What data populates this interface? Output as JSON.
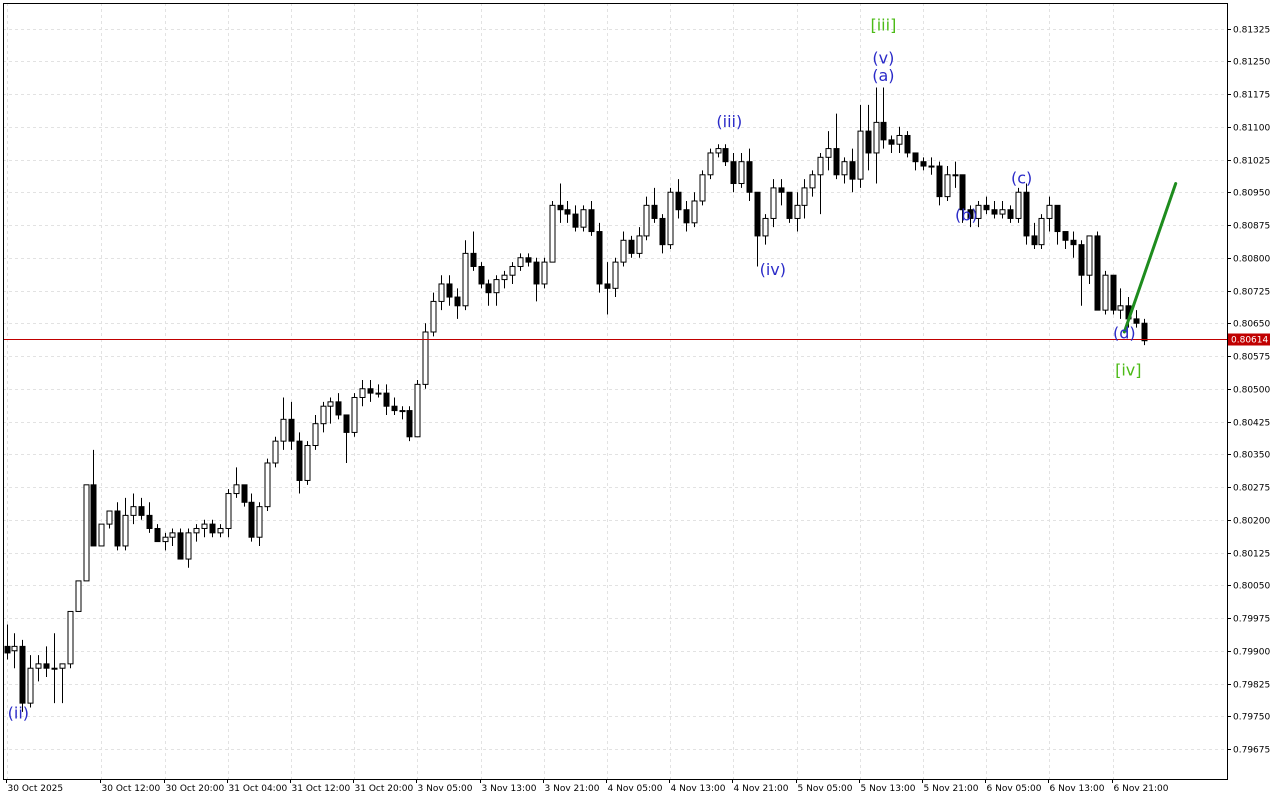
{
  "chart_data": {
    "type": "candlestick",
    "title": "",
    "xlabel": "",
    "ylabel": "",
    "ylim": [
      0.79618,
      0.8139
    ],
    "grid": true,
    "y_ticks": [
      "0.81325",
      "0.81250",
      "0.81175",
      "0.81100",
      "0.81025",
      "0.80950",
      "0.80875",
      "0.80800",
      "0.80725",
      "0.80650",
      "0.80575",
      "0.80500",
      "0.80425",
      "0.80350",
      "0.80275",
      "0.80200",
      "0.80125",
      "0.80050",
      "0.79975",
      "0.79900",
      "0.79825",
      "0.79750",
      "0.79675"
    ],
    "x_ticks": [
      {
        "label": "30 Oct 2025",
        "bar": 0
      },
      {
        "label": "30 Oct 12:00",
        "bar": 12
      },
      {
        "label": "30 Oct 20:00",
        "bar": 20
      },
      {
        "label": "31 Oct 04:00",
        "bar": 28
      },
      {
        "label": "31 Oct 12:00",
        "bar": 36
      },
      {
        "label": "31 Oct 20:00",
        "bar": 44
      },
      {
        "label": "3 Nov 05:00",
        "bar": 52
      },
      {
        "label": "3 Nov 13:00",
        "bar": 60
      },
      {
        "label": "3 Nov 21:00",
        "bar": 68
      },
      {
        "label": "4 Nov 05:00",
        "bar": 76
      },
      {
        "label": "4 Nov 13:00",
        "bar": 84
      },
      {
        "label": "4 Nov 21:00",
        "bar": 92
      },
      {
        "label": "5 Nov 05:00",
        "bar": 100
      },
      {
        "label": "5 Nov 13:00",
        "bar": 108
      },
      {
        "label": "5 Nov 21:00",
        "bar": 116
      },
      {
        "label": "6 Nov 05:00",
        "bar": 124
      },
      {
        "label": "6 Nov 13:00",
        "bar": 132
      },
      {
        "label": "6 Nov 21:00",
        "bar": 140
      }
    ],
    "candles": [
      [
        0.7991,
        0.7996,
        0.7988,
        0.79895
      ],
      [
        0.799,
        0.7994,
        0.7986,
        0.7991
      ],
      [
        0.7991,
        0.79925,
        0.7976,
        0.7978
      ],
      [
        0.7978,
        0.7989,
        0.7977,
        0.7986
      ],
      [
        0.7986,
        0.7989,
        0.7983,
        0.7987
      ],
      [
        0.7987,
        0.7991,
        0.7984,
        0.7986
      ],
      [
        0.7986,
        0.7994,
        0.7978,
        0.7986
      ],
      [
        0.7986,
        0.7987,
        0.7978,
        0.7987
      ],
      [
        0.7987,
        0.7999,
        0.7986,
        0.7999
      ],
      [
        0.7999,
        0.8006,
        0.7999,
        0.8006
      ],
      [
        0.8006,
        0.8028,
        0.8006,
        0.8028
      ],
      [
        0.8028,
        0.8036,
        0.8014,
        0.8014
      ],
      [
        0.8014,
        0.8019,
        0.8014,
        0.8019
      ],
      [
        0.8019,
        0.8022,
        0.8018,
        0.8022
      ],
      [
        0.8022,
        0.8024,
        0.8013,
        0.8014
      ],
      [
        0.8014,
        0.8025,
        0.8013,
        0.8021
      ],
      [
        0.8021,
        0.8026,
        0.8019,
        0.8023
      ],
      [
        0.8023,
        0.8025,
        0.802,
        0.8021
      ],
      [
        0.8021,
        0.8024,
        0.8017,
        0.8018
      ],
      [
        0.8018,
        0.8019,
        0.8015,
        0.8015
      ],
      [
        0.8015,
        0.8017,
        0.8013,
        0.8016
      ],
      [
        0.8016,
        0.8018,
        0.8014,
        0.8017
      ],
      [
        0.8017,
        0.8018,
        0.8011,
        0.8011
      ],
      [
        0.8011,
        0.8018,
        0.8009,
        0.8017
      ],
      [
        0.8017,
        0.8019,
        0.8015,
        0.8018
      ],
      [
        0.8018,
        0.802,
        0.8016,
        0.8019
      ],
      [
        0.8019,
        0.802,
        0.8016,
        0.8017
      ],
      [
        0.8017,
        0.8019,
        0.8016,
        0.8018
      ],
      [
        0.8018,
        0.8027,
        0.8016,
        0.8026
      ],
      [
        0.8026,
        0.8032,
        0.8025,
        0.8028
      ],
      [
        0.8028,
        0.8028,
        0.8023,
        0.8024
      ],
      [
        0.8024,
        0.8026,
        0.8015,
        0.8016
      ],
      [
        0.8016,
        0.8024,
        0.8014,
        0.8023
      ],
      [
        0.8023,
        0.8034,
        0.8022,
        0.8033
      ],
      [
        0.8033,
        0.8039,
        0.8032,
        0.8038
      ],
      [
        0.8038,
        0.8048,
        0.8036,
        0.8043
      ],
      [
        0.8043,
        0.8047,
        0.8036,
        0.8038
      ],
      [
        0.8038,
        0.804,
        0.8026,
        0.8029
      ],
      [
        0.8029,
        0.8038,
        0.8028,
        0.8037
      ],
      [
        0.8037,
        0.8044,
        0.8036,
        0.8042
      ],
      [
        0.8042,
        0.8047,
        0.804,
        0.8046
      ],
      [
        0.8046,
        0.8048,
        0.8042,
        0.8047
      ],
      [
        0.8047,
        0.8049,
        0.8043,
        0.8044
      ],
      [
        0.8044,
        0.8044,
        0.8033,
        0.804
      ],
      [
        0.804,
        0.8049,
        0.8039,
        0.8048
      ],
      [
        0.8048,
        0.8052,
        0.8046,
        0.805
      ],
      [
        0.805,
        0.8052,
        0.8047,
        0.8049
      ],
      [
        0.8049,
        0.8051,
        0.8048,
        0.8049
      ],
      [
        0.8049,
        0.8051,
        0.8044,
        0.8046
      ],
      [
        0.8046,
        0.8048,
        0.8044,
        0.8045
      ],
      [
        0.8045,
        0.8046,
        0.8043,
        0.8045
      ],
      [
        0.8045,
        0.8046,
        0.8038,
        0.8039
      ],
      [
        0.8039,
        0.8052,
        0.8039,
        0.8051
      ],
      [
        0.8051,
        0.8065,
        0.805,
        0.8063
      ],
      [
        0.8063,
        0.8072,
        0.8062,
        0.807
      ],
      [
        0.807,
        0.8076,
        0.8068,
        0.8074
      ],
      [
        0.8074,
        0.8076,
        0.8069,
        0.8071
      ],
      [
        0.8071,
        0.8073,
        0.8066,
        0.8069
      ],
      [
        0.8069,
        0.8084,
        0.8068,
        0.8081
      ],
      [
        0.8081,
        0.8086,
        0.8077,
        0.8078
      ],
      [
        0.8078,
        0.8079,
        0.8073,
        0.8074
      ],
      [
        0.8074,
        0.8075,
        0.8069,
        0.8072
      ],
      [
        0.8072,
        0.8076,
        0.8069,
        0.8075
      ],
      [
        0.8075,
        0.8077,
        0.8073,
        0.8076
      ],
      [
        0.8076,
        0.8079,
        0.8074,
        0.8078
      ],
      [
        0.8078,
        0.8081,
        0.8077,
        0.808
      ],
      [
        0.808,
        0.8081,
        0.8078,
        0.8079
      ],
      [
        0.8079,
        0.808,
        0.807,
        0.8074
      ],
      [
        0.8074,
        0.808,
        0.8073,
        0.8079
      ],
      [
        0.8079,
        0.8093,
        0.8079,
        0.8092
      ],
      [
        0.8092,
        0.8097,
        0.8088,
        0.8091
      ],
      [
        0.8091,
        0.8093,
        0.8088,
        0.809
      ],
      [
        0.809,
        0.8092,
        0.8086,
        0.8087
      ],
      [
        0.8087,
        0.8092,
        0.8086,
        0.8091
      ],
      [
        0.8091,
        0.8093,
        0.8085,
        0.8086
      ],
      [
        0.8086,
        0.8088,
        0.8072,
        0.8074
      ],
      [
        0.8074,
        0.8079,
        0.8067,
        0.8073
      ],
      [
        0.8073,
        0.808,
        0.8071,
        0.8079
      ],
      [
        0.8079,
        0.8086,
        0.8078,
        0.8084
      ],
      [
        0.8084,
        0.8085,
        0.808,
        0.8081
      ],
      [
        0.8081,
        0.8087,
        0.808,
        0.8085
      ],
      [
        0.8085,
        0.8094,
        0.8084,
        0.8092
      ],
      [
        0.8092,
        0.8096,
        0.8088,
        0.8089
      ],
      [
        0.8089,
        0.809,
        0.8081,
        0.8083
      ],
      [
        0.8083,
        0.8096,
        0.8082,
        0.8095
      ],
      [
        0.8095,
        0.8098,
        0.8089,
        0.8091
      ],
      [
        0.8091,
        0.8093,
        0.8086,
        0.8088
      ],
      [
        0.8088,
        0.8095,
        0.8087,
        0.8093
      ],
      [
        0.8093,
        0.81,
        0.8092,
        0.8099
      ],
      [
        0.8099,
        0.8105,
        0.8098,
        0.8104
      ],
      [
        0.8104,
        0.8106,
        0.8103,
        0.8105
      ],
      [
        0.8105,
        0.8106,
        0.8101,
        0.8102
      ],
      [
        0.8102,
        0.8104,
        0.8095,
        0.8097
      ],
      [
        0.8097,
        0.8104,
        0.8096,
        0.8102
      ],
      [
        0.8102,
        0.8105,
        0.8093,
        0.8095
      ],
      [
        0.8095,
        0.8095,
        0.8078,
        0.8085
      ],
      [
        0.8085,
        0.809,
        0.8083,
        0.8089
      ],
      [
        0.8089,
        0.8098,
        0.8087,
        0.8096
      ],
      [
        0.8096,
        0.8098,
        0.8092,
        0.8095
      ],
      [
        0.8095,
        0.8095,
        0.8088,
        0.8089
      ],
      [
        0.8089,
        0.8095,
        0.8086,
        0.8092
      ],
      [
        0.8092,
        0.8098,
        0.8089,
        0.8096
      ],
      [
        0.8096,
        0.81,
        0.8094,
        0.8099
      ],
      [
        0.8099,
        0.8104,
        0.809,
        0.8103
      ],
      [
        0.8103,
        0.8109,
        0.81,
        0.8105
      ],
      [
        0.8105,
        0.8113,
        0.8098,
        0.8099
      ],
      [
        0.8099,
        0.8103,
        0.8097,
        0.8102
      ],
      [
        0.8102,
        0.8105,
        0.8095,
        0.8098
      ],
      [
        0.8098,
        0.8115,
        0.8096,
        0.8109
      ],
      [
        0.8109,
        0.8115,
        0.81,
        0.8104
      ],
      [
        0.8104,
        0.8119,
        0.8097,
        0.8111
      ],
      [
        0.8111,
        0.8119,
        0.8105,
        0.8107
      ],
      [
        0.8107,
        0.8108,
        0.8104,
        0.8106
      ],
      [
        0.8106,
        0.811,
        0.8104,
        0.8108
      ],
      [
        0.8108,
        0.8109,
        0.8103,
        0.8104
      ],
      [
        0.8104,
        0.8104,
        0.81,
        0.8102
      ],
      [
        0.8102,
        0.8103,
        0.81,
        0.8101
      ],
      [
        0.8101,
        0.8103,
        0.8099,
        0.8101
      ],
      [
        0.8101,
        0.8102,
        0.8092,
        0.8094
      ],
      [
        0.8094,
        0.8101,
        0.8093,
        0.8099
      ],
      [
        0.8099,
        0.8102,
        0.8096,
        0.8099
      ],
      [
        0.8099,
        0.8099,
        0.8088,
        0.8091
      ],
      [
        0.8091,
        0.8092,
        0.8087,
        0.8089
      ],
      [
        0.8089,
        0.8093,
        0.8087,
        0.8092
      ],
      [
        0.8092,
        0.8094,
        0.809,
        0.8091
      ],
      [
        0.8091,
        0.8093,
        0.8089,
        0.809
      ],
      [
        0.809,
        0.8093,
        0.8089,
        0.8091
      ],
      [
        0.8091,
        0.8092,
        0.8088,
        0.8089
      ],
      [
        0.8089,
        0.8096,
        0.8088,
        0.8095
      ],
      [
        0.8095,
        0.8097,
        0.8083,
        0.8085
      ],
      [
        0.8085,
        0.8088,
        0.8082,
        0.8083
      ],
      [
        0.8083,
        0.809,
        0.8082,
        0.8089
      ],
      [
        0.8089,
        0.8094,
        0.8086,
        0.8092
      ],
      [
        0.8092,
        0.8092,
        0.8083,
        0.8086
      ],
      [
        0.8086,
        0.8086,
        0.8082,
        0.8084
      ],
      [
        0.8084,
        0.8086,
        0.808,
        0.8083
      ],
      [
        0.8083,
        0.8084,
        0.8069,
        0.8076
      ],
      [
        0.8076,
        0.8085,
        0.8074,
        0.8085
      ],
      [
        0.8085,
        0.8086,
        0.8069,
        0.8068
      ],
      [
        0.8068,
        0.8077,
        0.8067,
        0.8076
      ],
      [
        0.8076,
        0.8076,
        0.8067,
        0.8068
      ],
      [
        0.8068,
        0.8073,
        0.8066,
        0.8069
      ],
      [
        0.8069,
        0.8071,
        0.8064,
        0.8066
      ],
      [
        0.8066,
        0.8068,
        0.8064,
        0.8065
      ],
      [
        0.8065,
        0.8066,
        0.806,
        0.8061
      ]
    ],
    "current_price": {
      "value": 0.80614,
      "label": "0.80614",
      "color": "#c00000"
    },
    "projection": {
      "color": "#1e8c1e",
      "points": [
        {
          "bar": 141.5,
          "price": 0.8063
        },
        {
          "bar": 148,
          "price": 0.8097
        }
      ]
    },
    "wave_labels": [
      {
        "text": "(ii)",
        "bar": 1.5,
        "price": 0.79745,
        "color": "#2b2bc8"
      },
      {
        "text": "(iii)",
        "bar": 91.5,
        "price": 0.811,
        "color": "#2b2bc8"
      },
      {
        "text": "(iv)",
        "bar": 97,
        "price": 0.8076,
        "color": "#2b2bc8"
      },
      {
        "text": "[iii]",
        "bar": 111,
        "price": 0.8132,
        "color": "#4cbb17"
      },
      {
        "text": "(v)",
        "bar": 111,
        "price": 0.81245,
        "color": "#2b2bc8"
      },
      {
        "text": "(a)",
        "bar": 111,
        "price": 0.81205,
        "color": "#2b2bc8"
      },
      {
        "text": "(b)",
        "bar": 121.5,
        "price": 0.80885,
        "color": "#2b2bc8"
      },
      {
        "text": "(c)",
        "bar": 128.5,
        "price": 0.8097,
        "color": "#2b2bc8"
      },
      {
        "text": "(d)",
        "bar": 141.5,
        "price": 0.80615,
        "color": "#2b2bc8"
      },
      {
        "text": "[iv]",
        "bar": 142,
        "price": 0.8053,
        "color": "#4cbb17"
      }
    ],
    "colors": {
      "bull_body": "#ffffff",
      "bear_body": "#000000",
      "wick": "#000000",
      "grid": "#e2e2e2",
      "background": "#ffffff"
    }
  }
}
